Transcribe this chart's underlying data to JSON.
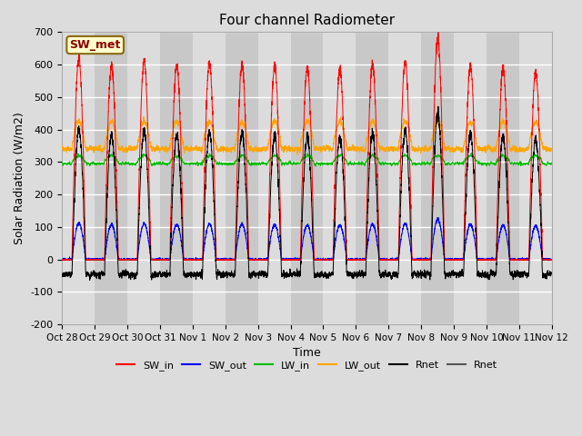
{
  "title": "Four channel Radiometer",
  "xlabel": "Time",
  "ylabel": "Solar Radiation (W/m2)",
  "ylim": [
    -200,
    700
  ],
  "yticks": [
    -200,
    -100,
    0,
    100,
    200,
    300,
    400,
    500,
    600,
    700
  ],
  "x_tick_labels": [
    "Oct 28",
    "Oct 29",
    "Oct 30",
    "Oct 31",
    "Nov 1",
    "Nov 2",
    "Nov 3",
    "Nov 4",
    "Nov 5",
    "Nov 6",
    "Nov 7",
    "Nov 8",
    "Nov 9",
    "Nov 10",
    "Nov 11",
    "Nov 12"
  ],
  "annotation_text": "SW_met",
  "annotation_color": "#8B0000",
  "annotation_bg": "#FFFFCC",
  "annotation_edge": "#8B6914",
  "colors": {
    "SW_in": "#FF0000",
    "SW_out": "#0000FF",
    "LW_in": "#00BB00",
    "LW_out": "#FFA500",
    "Rnet1": "#000000",
    "Rnet2": "#555555"
  },
  "legend_labels": [
    "SW_in",
    "SW_out",
    "LW_in",
    "LW_out",
    "Rnet",
    "Rnet"
  ],
  "legend_colors": [
    "#FF0000",
    "#0000FF",
    "#00BB00",
    "#FFA500",
    "#000000",
    "#555555"
  ],
  "background_color": "#DCDCDC",
  "plot_bg": "#EBEBEB"
}
